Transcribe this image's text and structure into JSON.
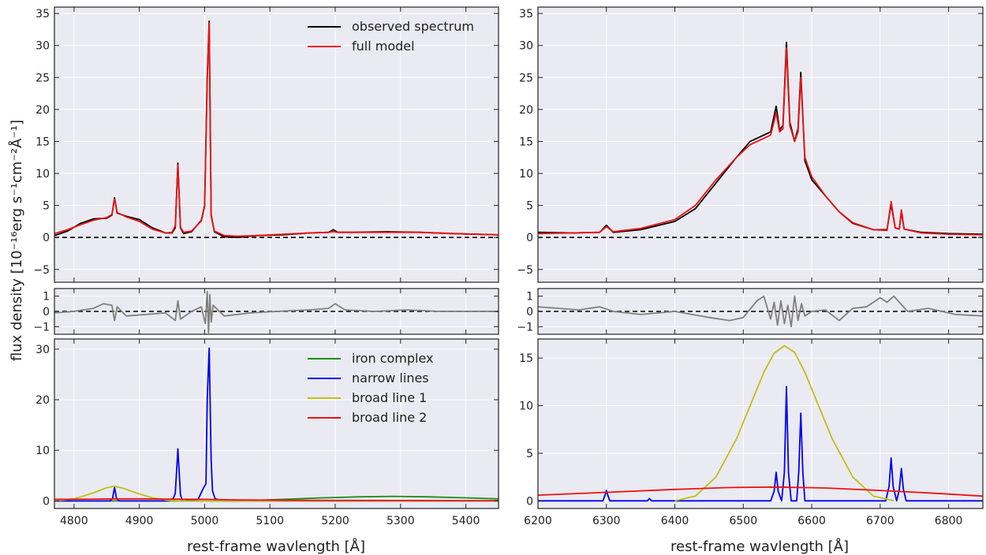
{
  "figure": {
    "ylabel": "flux density [10⁻¹⁶erg s⁻¹cm⁻²Å⁻¹]",
    "xlabel_left": "rest-frame wavlength [Å]",
    "xlabel_right": "rest-frame wavlength [Å]"
  },
  "colors": {
    "observed": "#000000",
    "model": "#ee1111",
    "residual": "#808080",
    "iron": "#159015",
    "narrow": "#0000ee",
    "broad1": "#c0c016",
    "broad2": "#ee1111",
    "panel_bg": "#eaeaf2",
    "grid": "#ffffff"
  },
  "chart_data": [
    {
      "id": "hbeta_fit",
      "type": "line",
      "xlim": [
        4770,
        5450
      ],
      "ylim": [
        -7,
        36
      ],
      "xticks": [
        4800,
        4900,
        5000,
        5100,
        5200,
        5300,
        5400
      ],
      "yticks": [
        -5,
        0,
        5,
        10,
        15,
        20,
        25,
        30,
        35
      ],
      "grid": true,
      "zero_line": "dashed",
      "legend_position": "top-right",
      "legend": [
        "observed spectrum",
        "full model"
      ],
      "series": [
        {
          "name": "observed spectrum",
          "color_key": "observed",
          "x": [
            4770,
            4790,
            4810,
            4830,
            4850,
            4858,
            4862,
            4866,
            4880,
            4900,
            4920,
            4940,
            4950,
            4955,
            4959,
            4963,
            4968,
            4980,
            4995,
            5000,
            5004,
            5007,
            5010,
            5015,
            5030,
            5050,
            5080,
            5120,
            5160,
            5190,
            5197,
            5204,
            5230,
            5280,
            5330,
            5380,
            5450
          ],
          "y": [
            0.3,
            1.0,
            2.2,
            2.9,
            3.0,
            3.5,
            6.2,
            3.8,
            3.3,
            2.8,
            1.5,
            0.7,
            0.7,
            1.5,
            11.6,
            1.5,
            0.6,
            0.9,
            2.7,
            5.0,
            25.0,
            33.8,
            3.5,
            0.9,
            0.1,
            0.0,
            0.3,
            0.4,
            0.7,
            0.8,
            1.2,
            0.8,
            0.8,
            0.9,
            0.8,
            0.6,
            0.4
          ]
        },
        {
          "name": "full model",
          "color_key": "model",
          "x": [
            4770,
            4790,
            4810,
            4830,
            4850,
            4858,
            4862,
            4866,
            4880,
            4900,
            4920,
            4940,
            4950,
            4955,
            4959,
            4963,
            4968,
            4980,
            4995,
            5000,
            5004,
            5007,
            5010,
            5015,
            5030,
            5050,
            5080,
            5120,
            5160,
            5190,
            5197,
            5204,
            5230,
            5280,
            5330,
            5380,
            5450
          ],
          "y": [
            0.6,
            1.2,
            2.0,
            2.7,
            3.1,
            3.6,
            6.0,
            3.9,
            3.2,
            2.5,
            1.3,
            0.7,
            0.8,
            1.8,
            11.3,
            1.6,
            0.8,
            1.0,
            2.6,
            4.8,
            24.5,
            33.5,
            3.3,
            1.0,
            0.3,
            0.2,
            0.3,
            0.5,
            0.7,
            0.8,
            0.9,
            0.8,
            0.8,
            0.8,
            0.8,
            0.6,
            0.4
          ]
        }
      ]
    },
    {
      "id": "hbeta_residual",
      "type": "line",
      "xlim": [
        4770,
        5450
      ],
      "ylim": [
        -1.5,
        1.5
      ],
      "yticks": [
        -1,
        0,
        1
      ],
      "grid": true,
      "zero_line": "dashed",
      "series": [
        {
          "name": "",
          "color_key": "residual",
          "x": [
            4770,
            4800,
            4830,
            4845,
            4858,
            4862,
            4866,
            4880,
            4910,
            4940,
            4955,
            4959,
            4963,
            4980,
            4995,
            5001,
            5004,
            5006,
            5008,
            5010,
            5013,
            5030,
            5070,
            5110,
            5160,
            5190,
            5200,
            5215,
            5260,
            5310,
            5360,
            5410,
            5450
          ],
          "y": [
            -0.1,
            0.0,
            0.2,
            0.5,
            0.4,
            -0.6,
            0.3,
            -0.3,
            -0.2,
            -0.1,
            -0.6,
            0.7,
            -0.5,
            0.0,
            0.3,
            -0.8,
            1.3,
            -1.4,
            1.1,
            -0.7,
            0.4,
            -0.3,
            -0.1,
            0.0,
            0.1,
            0.2,
            0.5,
            0.1,
            0.0,
            0.1,
            0.0,
            0.0,
            0.0
          ]
        }
      ]
    },
    {
      "id": "hbeta_components",
      "type": "line",
      "xlim": [
        4770,
        5450
      ],
      "ylim": [
        -1.5,
        32
      ],
      "yticks": [
        0,
        10,
        20,
        30
      ],
      "grid": true,
      "legend_position": "top-right",
      "legend": [
        "iron complex",
        "narrow lines",
        "broad line 1",
        "broad line 2"
      ],
      "series": [
        {
          "name": "iron complex",
          "color_key": "iron",
          "x": [
            4770,
            4900,
            5050,
            5120,
            5180,
            5240,
            5290,
            5340,
            5400,
            5450
          ],
          "y": [
            0.0,
            0.0,
            0.0,
            0.3,
            0.6,
            0.8,
            0.9,
            0.8,
            0.6,
            0.4
          ]
        },
        {
          "name": "narrow lines",
          "color_key": "narrow",
          "x": [
            4770,
            4855,
            4859,
            4862,
            4865,
            4869,
            4945,
            4952,
            4955,
            4958,
            4959,
            4960,
            4963,
            4966,
            4990,
            4998,
            5002,
            5004,
            5007,
            5010,
            5012,
            5016,
            5030,
            5450
          ],
          "y": [
            0.0,
            0.0,
            0.5,
            2.7,
            0.5,
            0.0,
            0.0,
            0.5,
            1.5,
            8.0,
            10.3,
            8.0,
            1.2,
            0.0,
            0.3,
            2.5,
            3.4,
            20.0,
            30.2,
            8.0,
            2.0,
            0.4,
            0.0,
            0.0
          ]
        },
        {
          "name": "broad line 1",
          "color_key": "broad1",
          "x": [
            4770,
            4800,
            4830,
            4850,
            4862,
            4875,
            4895,
            4920,
            4945,
            4970,
            5000,
            5450
          ],
          "y": [
            0.0,
            0.4,
            1.6,
            2.6,
            2.9,
            2.5,
            1.6,
            0.6,
            0.1,
            0.0,
            0.0,
            0.0
          ]
        },
        {
          "name": "broad line 2",
          "color_key": "broad2",
          "x": [
            4770,
            4830,
            4860,
            4900,
            4950,
            5000,
            5050,
            5150,
            5450
          ],
          "y": [
            0.3,
            0.35,
            0.4,
            0.4,
            0.35,
            0.3,
            0.2,
            0.1,
            0.05
          ]
        }
      ]
    },
    {
      "id": "halpha_fit",
      "type": "line",
      "xlim": [
        6200,
        6850
      ],
      "ylim": [
        -7,
        36
      ],
      "xticks": [
        6200,
        6300,
        6400,
        6500,
        6600,
        6700,
        6800
      ],
      "yticks": [
        -5,
        0,
        5,
        10,
        15,
        20,
        25,
        30,
        35
      ],
      "grid": true,
      "zero_line": "dashed",
      "series": [
        {
          "name": "observed spectrum",
          "color_key": "observed",
          "x": [
            6200,
            6250,
            6290,
            6300,
            6310,
            6350,
            6400,
            6430,
            6460,
            6490,
            6510,
            6530,
            6540,
            6548,
            6553,
            6558,
            6563,
            6568,
            6575,
            6580,
            6584,
            6590,
            6600,
            6620,
            6640,
            6660,
            6690,
            6710,
            6716,
            6722,
            6728,
            6731,
            6735,
            6760,
            6800,
            6850
          ],
          "y": [
            0.8,
            0.7,
            0.8,
            1.9,
            0.8,
            1.2,
            2.5,
            4.5,
            8.5,
            12.5,
            15.0,
            16.0,
            16.5,
            20.5,
            16.8,
            17.5,
            30.5,
            18.0,
            15.0,
            17.0,
            25.8,
            12.0,
            9.0,
            6.5,
            4.0,
            2.2,
            1.2,
            1.2,
            5.2,
            1.5,
            1.3,
            4.0,
            1.3,
            0.8,
            0.6,
            0.5
          ]
        },
        {
          "name": "full model",
          "color_key": "model",
          "x": [
            6200,
            6250,
            6290,
            6300,
            6310,
            6350,
            6400,
            6430,
            6460,
            6490,
            6510,
            6530,
            6540,
            6548,
            6553,
            6558,
            6563,
            6568,
            6575,
            6580,
            6584,
            6590,
            6600,
            6620,
            6640,
            6660,
            6690,
            6710,
            6716,
            6722,
            6728,
            6731,
            6735,
            6760,
            6800,
            6850
          ],
          "y": [
            0.6,
            0.7,
            0.8,
            1.7,
            0.9,
            1.4,
            2.8,
            5.0,
            9.0,
            12.5,
            14.5,
            15.5,
            16.0,
            19.5,
            16.5,
            17.0,
            29.6,
            17.5,
            15.0,
            16.5,
            25.0,
            12.5,
            9.5,
            6.5,
            4.0,
            2.3,
            1.2,
            1.1,
            5.6,
            1.5,
            1.3,
            4.3,
            1.3,
            0.7,
            0.5,
            0.4
          ]
        }
      ]
    },
    {
      "id": "halpha_residual",
      "type": "line",
      "xlim": [
        6200,
        6850
      ],
      "ylim": [
        -1.5,
        1.5
      ],
      "yticks": [
        -1,
        0,
        1
      ],
      "grid": true,
      "zero_line": "dashed",
      "series": [
        {
          "name": "",
          "color_key": "residual",
          "x": [
            6200,
            6230,
            6260,
            6290,
            6310,
            6350,
            6400,
            6450,
            6480,
            6500,
            6520,
            6530,
            6540,
            6545,
            6550,
            6555,
            6560,
            6565,
            6570,
            6575,
            6580,
            6585,
            6590,
            6600,
            6620,
            6640,
            6660,
            6680,
            6700,
            6710,
            6720,
            6740,
            6770,
            6810,
            6850
          ],
          "y": [
            0.3,
            0.2,
            0.1,
            0.3,
            0.0,
            -0.2,
            0.0,
            -0.4,
            -0.6,
            -0.4,
            0.7,
            1.0,
            -0.5,
            0.6,
            -0.9,
            0.7,
            -0.8,
            0.4,
            -1.0,
            1.0,
            -0.6,
            0.5,
            -0.3,
            0.0,
            0.1,
            -0.6,
            0.2,
            0.3,
            0.9,
            0.6,
            1.0,
            0.0,
            0.2,
            -0.2,
            -0.3
          ]
        }
      ]
    },
    {
      "id": "halpha_components",
      "type": "line",
      "xlim": [
        6200,
        6850
      ],
      "ylim": [
        -0.8,
        17
      ],
      "yticks": [
        0,
        5,
        10,
        15
      ],
      "grid": true,
      "series": [
        {
          "name": "narrow lines",
          "color_key": "narrow",
          "x": [
            6200,
            6295,
            6298,
            6300,
            6302,
            6305,
            6360,
            6363,
            6366,
            6540,
            6545,
            6548,
            6551,
            6556,
            6560,
            6563,
            6566,
            6570,
            6578,
            6581,
            6584,
            6587,
            6590,
            6708,
            6713,
            6716,
            6719,
            6724,
            6728,
            6731,
            6734,
            6738,
            6850
          ],
          "y": [
            0.0,
            0.0,
            0.6,
            1.1,
            0.6,
            0.0,
            0.0,
            0.25,
            0.0,
            0.0,
            1.0,
            3.0,
            1.0,
            0.0,
            3.0,
            12.0,
            3.0,
            0.0,
            0.0,
            3.0,
            9.2,
            3.0,
            0.0,
            0.0,
            1.5,
            4.5,
            1.5,
            0.0,
            1.2,
            3.4,
            1.2,
            0.0,
            0.0
          ]
        },
        {
          "name": "broad line 1",
          "color_key": "broad1",
          "x": [
            6400,
            6430,
            6460,
            6490,
            6510,
            6530,
            6545,
            6560,
            6575,
            6590,
            6610,
            6630,
            6660,
            6690,
            6720
          ],
          "y": [
            0.0,
            0.5,
            2.5,
            6.5,
            10.0,
            13.5,
            15.5,
            16.3,
            15.6,
            13.5,
            10.0,
            6.5,
            2.5,
            0.5,
            0.0
          ]
        },
        {
          "name": "broad line 2",
          "color_key": "broad2",
          "x": [
            6200,
            6300,
            6400,
            6480,
            6550,
            6620,
            6700,
            6780,
            6850
          ],
          "y": [
            0.6,
            0.9,
            1.2,
            1.4,
            1.45,
            1.35,
            1.1,
            0.8,
            0.5
          ]
        }
      ]
    }
  ]
}
